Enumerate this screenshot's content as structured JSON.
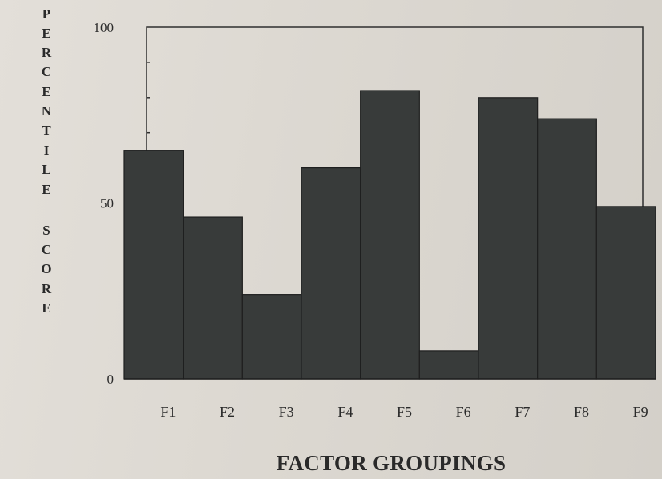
{
  "chart_data": {
    "type": "bar",
    "categories": [
      "F1",
      "F2",
      "F3",
      "F4",
      "F5",
      "F6",
      "F7",
      "F8",
      "F9"
    ],
    "values": [
      65,
      46,
      24,
      60,
      82,
      8,
      80,
      74,
      49
    ],
    "xlabel": "FACTOR GROUPINGS",
    "ylabel": "PERCENTILE SCORE",
    "ylim": [
      0,
      100
    ],
    "y_tick_labels": [
      "0",
      "50",
      "100"
    ],
    "grid": false,
    "bar_color": "#383b3a",
    "legend": "none"
  },
  "ylabel_letters": [
    "P",
    "E",
    "R",
    "C",
    "E",
    "N",
    "T",
    "I",
    "L",
    "E",
    "S",
    "C",
    "O",
    "R",
    "E"
  ]
}
